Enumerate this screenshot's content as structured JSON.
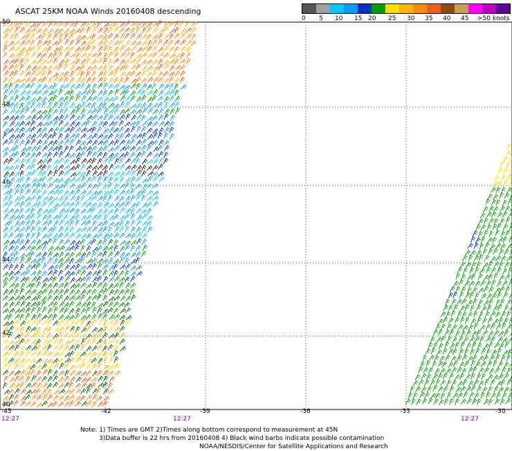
{
  "title": "ASCAT 25KM NOAA Winds 20160408 descending",
  "colorbar": {
    "colors": [
      "#555555",
      "#a0a0a0",
      "#00c8ff",
      "#009cff",
      "#0032c8",
      "#00a000",
      "#ffdd00",
      "#ffb400",
      "#ff8c00",
      "#f06010",
      "#8c4a14",
      "#c8a050",
      "#ff00ff",
      "#c000c0",
      "#6000a0"
    ],
    "labels": [
      "0",
      "5",
      "10",
      "15",
      "20",
      "25",
      "30",
      "35",
      "40",
      "45",
      ">50 knots"
    ]
  },
  "map": {
    "lat_labels": [
      "50",
      "48",
      "46",
      "44",
      "42",
      "40"
    ],
    "lon_labels": [
      "-45",
      "-42",
      "-39",
      "-36",
      "-33",
      "-30"
    ],
    "time_labels": [
      "12:27",
      "12:27",
      "12:27"
    ]
  },
  "notes": [
    "Note: 1) Times are GMT 2)Times along bottom correspond to measurement at 45N",
    "3)Data buffer is 22 hrs from 20160408 4) Black wind barbs indicate possible contamination",
    "NOAA/NESDIS/Center for Satellite Applications and Research"
  ]
}
